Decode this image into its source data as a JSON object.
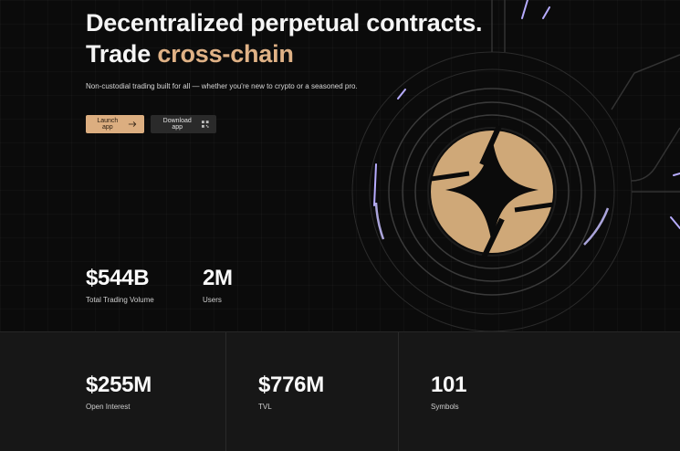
{
  "hero": {
    "headline_line1": "Decentralized perpetual contracts.",
    "headline_trade": "Trade",
    "headline_accent": "cross-chain",
    "subtitle": "Non-custodial trading built for all — whether you're new to crypto or a seasoned pro.",
    "accent_color": "#e0b286"
  },
  "buttons": {
    "launch_label": "Launch app",
    "launch_icon": "arrow-right-icon",
    "download_label": "Download app",
    "download_icon": "qr-code-icon"
  },
  "stats_top": [
    {
      "value": "$544B",
      "label": "Total Trading Volume"
    },
    {
      "value": "2M",
      "label": "Users"
    }
  ],
  "stats_bottom": [
    {
      "value": "$255M",
      "label": "Open Interest"
    },
    {
      "value": "$776M",
      "label": "TVL"
    },
    {
      "value": "101",
      "label": "Symbols"
    }
  ],
  "logo": {
    "icon": "four-point-star-logo",
    "fill_color": "#cfa878",
    "glow_color": "#a9a0ff"
  }
}
